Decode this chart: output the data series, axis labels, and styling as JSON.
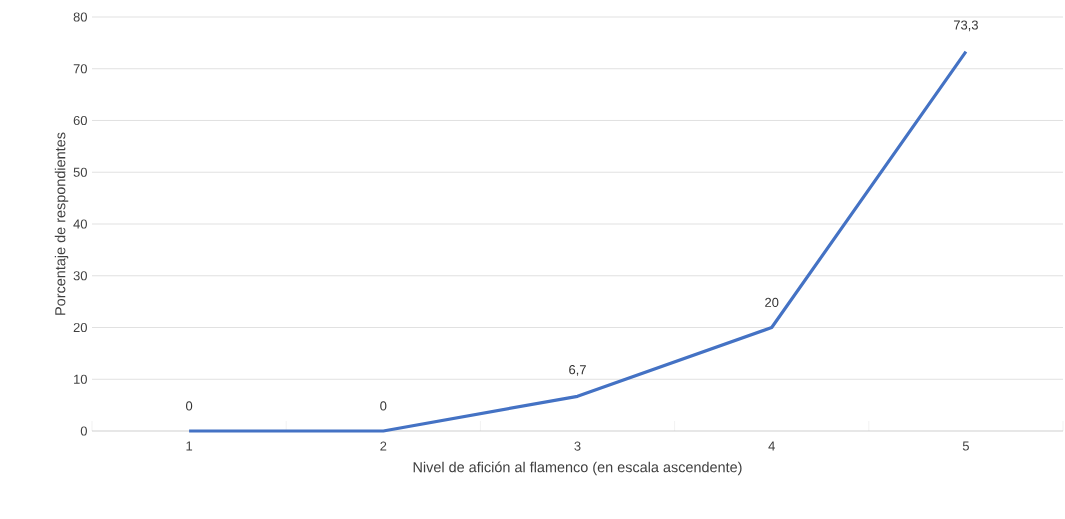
{
  "chart_data": {
    "type": "line",
    "xlabel": "Nivel de afición al flamenco (en escala ascendente)",
    "ylabel": "Porcentaje de respondientes",
    "categories": [
      "1",
      "2",
      "3",
      "4",
      "5"
    ],
    "series": [
      {
        "color": "#4472c4",
        "values": [
          0,
          0,
          6.7,
          20,
          73.3
        ]
      }
    ],
    "value_labels": [
      "0",
      "0",
      "6,7",
      "20",
      "73,3"
    ],
    "ylim": [
      0,
      80
    ],
    "yticks": [
      0,
      10,
      20,
      30,
      40,
      50,
      60,
      70,
      80
    ],
    "grid": "y"
  }
}
